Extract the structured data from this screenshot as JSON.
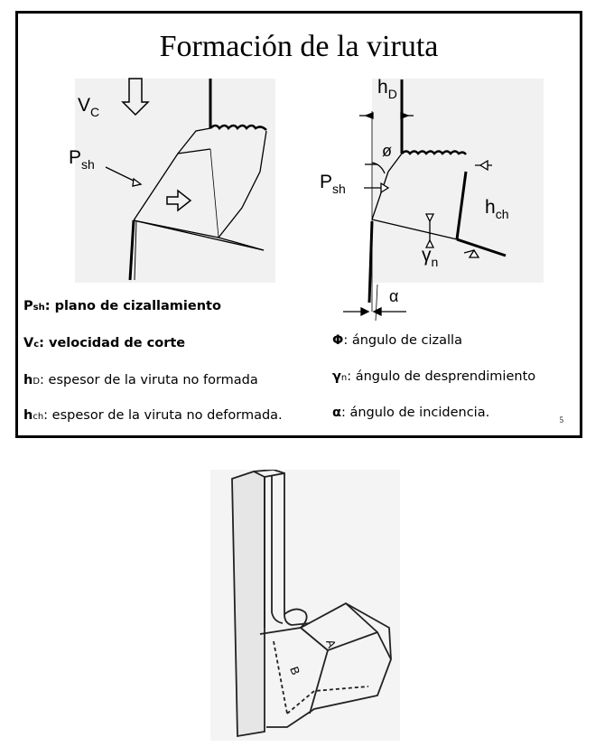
{
  "title": "Formación de la viruta",
  "page_number": "5",
  "labels": {
    "vc": "V",
    "vc_sub": "C",
    "psh_left": "P",
    "psh_left_sub": "sh",
    "psh_right": "P",
    "psh_right_sub": "sh",
    "hd": "h",
    "hd_sub": "D",
    "hch": "h",
    "hch_sub": "ch",
    "phi": "ø",
    "gamma": "γ",
    "gamma_sub": "n",
    "alpha": "α"
  },
  "legend_left": [
    {
      "sym": "P",
      "sub": "sh",
      "text": ": plano de cizallamiento"
    },
    {
      "sym": "V",
      "sub": "c",
      "text": ": velocidad de corte"
    },
    {
      "sym": "h",
      "sub": "D",
      "text": ": espesor de la viruta no formada"
    },
    {
      "sym": "h",
      "sub": "ch",
      "text": ": espesor de la viruta no deformada."
    }
  ],
  "legend_right": [
    {
      "sym": "Φ",
      "sub": "",
      "text": ": ángulo de cizalla"
    },
    {
      "sym": "γ",
      "sub": "n",
      "text": ": ángulo de desprendimiento"
    },
    {
      "sym": "α",
      "sub": "",
      "text": ": ángulo de incidencia."
    }
  ],
  "bottom_figure": {
    "face_a": "A",
    "face_b": "B"
  }
}
